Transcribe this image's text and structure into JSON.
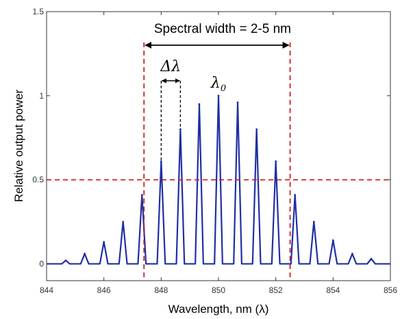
{
  "chart_data": {
    "type": "line",
    "title": "",
    "xlabel": "Wavelength, nm (λ)",
    "ylabel": "Relative output power",
    "xlim": [
      844,
      856
    ],
    "ylim": [
      -0.1,
      1.5
    ],
    "xticks": [
      "844",
      "846",
      "848",
      "850",
      "852",
      "854",
      "856"
    ],
    "yticks": [
      "0",
      "0.5",
      "1",
      "1.5"
    ],
    "grid": false,
    "series": [
      {
        "color": "#1f2fa3",
        "modes": [
          {
            "x": 844.67,
            "y": 0.02
          },
          {
            "x": 845.33,
            "y": 0.06
          },
          {
            "x": 846.0,
            "y": 0.13
          },
          {
            "x": 846.67,
            "y": 0.25
          },
          {
            "x": 847.33,
            "y": 0.41
          },
          {
            "x": 848.0,
            "y": 0.61
          },
          {
            "x": 848.67,
            "y": 0.8
          },
          {
            "x": 849.33,
            "y": 0.95
          },
          {
            "x": 850.0,
            "y": 1.0
          },
          {
            "x": 850.67,
            "y": 0.96
          },
          {
            "x": 851.33,
            "y": 0.8
          },
          {
            "x": 852.0,
            "y": 0.61
          },
          {
            "x": 852.67,
            "y": 0.41
          },
          {
            "x": 853.33,
            "y": 0.25
          },
          {
            "x": 854.0,
            "y": 0.14
          },
          {
            "x": 854.67,
            "y": 0.06
          },
          {
            "x": 855.33,
            "y": 0.03
          }
        ]
      }
    ],
    "reference_lines": {
      "color": "#cc2020",
      "vertical_x": [
        847.4,
        852.5
      ],
      "horizontal_y": 0.5
    },
    "annotations": {
      "spectral_width": "Spectral width = 2-5 nm",
      "delta_lambda": "Δλ",
      "lambda0_base": "λ",
      "lambda0_sub": "0"
    }
  }
}
